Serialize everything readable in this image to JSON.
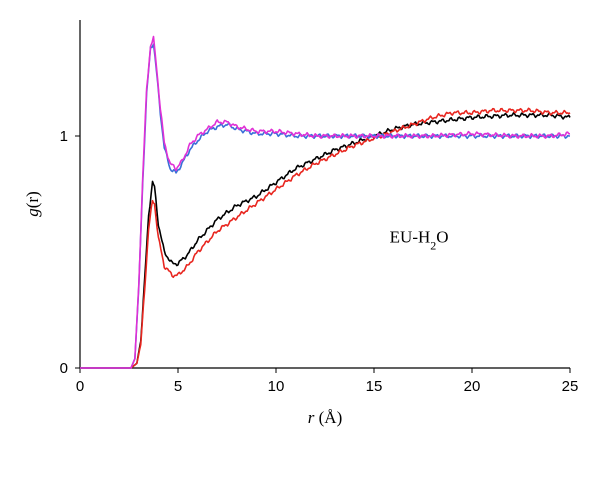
{
  "chart_data": {
    "type": "line",
    "title": "",
    "xlabel": {
      "var": "r",
      "unit": " (Å)"
    },
    "ylabel": {
      "var": "g",
      "paren": "(r)"
    },
    "xlim": [
      0,
      25
    ],
    "ylim": [
      0,
      1.5
    ],
    "x_ticks": [
      0,
      5,
      10,
      15,
      20,
      25
    ],
    "y_ticks": [
      0,
      1
    ],
    "grid": false,
    "legend": "none",
    "annotation": {
      "text": "EU-H",
      "sub": "2",
      "tail": "O",
      "x": 15.8,
      "y": 0.54
    },
    "series": [
      {
        "color": "#000000",
        "x": [
          0,
          2.6,
          2.9,
          3.1,
          3.3,
          3.5,
          3.7,
          3.8,
          4.0,
          4.3,
          4.7,
          5.0,
          5.5,
          6.0,
          7.0,
          8.0,
          9.0,
          10.0,
          11.0,
          12.0,
          13.0,
          14.0,
          15.0,
          16.0,
          17.0,
          18.0,
          19.0,
          20.0,
          21.0,
          22.0,
          23.0,
          24.0,
          25.0
        ],
        "y": [
          0,
          0,
          0.02,
          0.12,
          0.38,
          0.66,
          0.8,
          0.78,
          0.62,
          0.5,
          0.45,
          0.45,
          0.49,
          0.55,
          0.64,
          0.7,
          0.74,
          0.8,
          0.86,
          0.9,
          0.94,
          0.97,
          1.0,
          1.03,
          1.05,
          1.06,
          1.07,
          1.08,
          1.085,
          1.09,
          1.09,
          1.09,
          1.08
        ]
      },
      {
        "color": "#e8261f",
        "x": [
          0,
          2.6,
          2.9,
          3.1,
          3.3,
          3.5,
          3.7,
          3.8,
          4.0,
          4.3,
          4.7,
          5.0,
          5.5,
          6.0,
          7.0,
          8.0,
          9.0,
          10.0,
          11.0,
          12.0,
          13.0,
          14.0,
          15.0,
          16.0,
          17.0,
          18.0,
          19.0,
          20.0,
          21.0,
          22.0,
          23.0,
          24.0,
          25.0
        ],
        "y": [
          0,
          0,
          0.02,
          0.1,
          0.34,
          0.6,
          0.72,
          0.71,
          0.56,
          0.44,
          0.4,
          0.4,
          0.44,
          0.5,
          0.59,
          0.65,
          0.71,
          0.77,
          0.83,
          0.88,
          0.92,
          0.96,
          0.99,
          1.02,
          1.05,
          1.08,
          1.1,
          1.1,
          1.11,
          1.11,
          1.11,
          1.1,
          1.1
        ]
      },
      {
        "color": "#3a6fd8",
        "x": [
          0,
          2.6,
          2.8,
          3.0,
          3.2,
          3.4,
          3.6,
          3.75,
          3.9,
          4.1,
          4.3,
          4.6,
          4.9,
          5.2,
          5.6,
          6.0,
          6.5,
          7.0,
          7.5,
          8.0,
          8.5,
          9.0,
          10.0,
          11.0,
          12.0,
          14.0,
          16.0,
          18.0,
          20.0,
          22.0,
          24.0,
          25.0
        ],
        "y": [
          0,
          0,
          0.04,
          0.35,
          0.8,
          1.18,
          1.38,
          1.4,
          1.28,
          1.1,
          0.95,
          0.86,
          0.84,
          0.88,
          0.94,
          0.98,
          1.02,
          1.04,
          1.05,
          1.03,
          1.02,
          1.01,
          1.01,
          1.0,
          1.0,
          1.0,
          1.0,
          1.0,
          1.0,
          1.0,
          1.0,
          1.0
        ]
      },
      {
        "color": "#e030d6",
        "x": [
          0,
          2.6,
          2.8,
          3.0,
          3.2,
          3.4,
          3.6,
          3.75,
          3.9,
          4.1,
          4.3,
          4.6,
          4.9,
          5.2,
          5.6,
          6.0,
          6.5,
          7.0,
          7.5,
          8.0,
          8.5,
          9.0,
          10.0,
          11.0,
          12.0,
          14.0,
          16.0,
          18.0,
          20.0,
          22.0,
          24.0,
          25.0
        ],
        "y": [
          0,
          0,
          0.04,
          0.36,
          0.82,
          1.2,
          1.39,
          1.42,
          1.3,
          1.12,
          0.97,
          0.88,
          0.86,
          0.89,
          0.96,
          1.0,
          1.03,
          1.06,
          1.06,
          1.04,
          1.03,
          1.02,
          1.02,
          1.01,
          1.0,
          1.0,
          1.0,
          1.0,
          1.01,
          1.0,
          1.0,
          1.01
        ]
      }
    ]
  }
}
